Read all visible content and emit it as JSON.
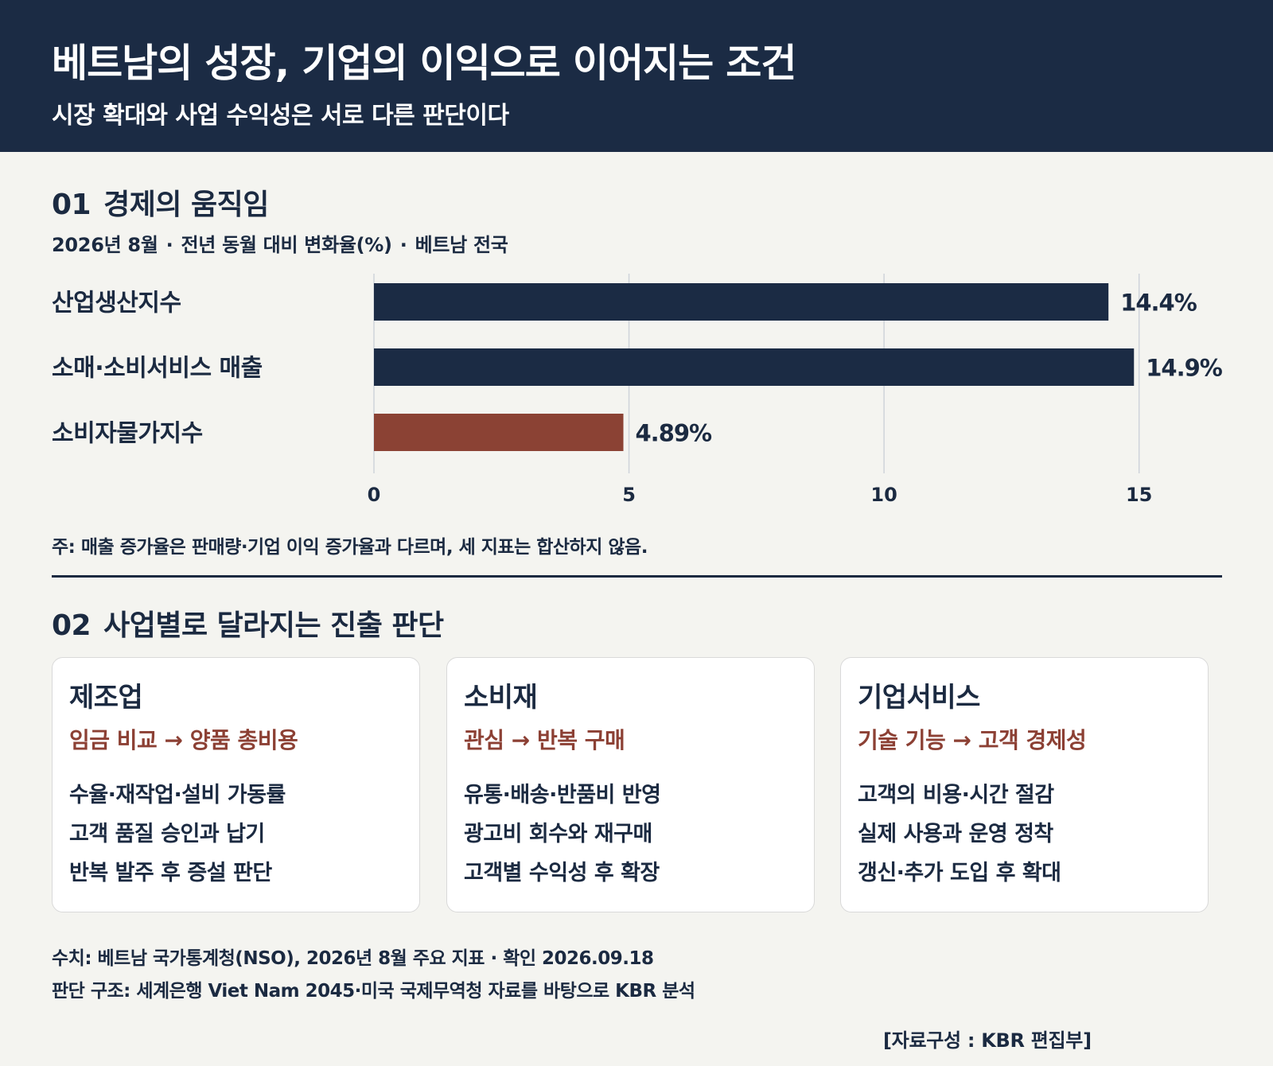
{
  "header": {
    "title": "베트남의 성장, 기업의 이익으로 이어지는 조건",
    "subtitle": "시장 확대와 사업 수익성은 서로 다른 판단이다"
  },
  "section1": {
    "number": "01",
    "title": "경제의 움직임",
    "subtitle_parts": [
      "2026년 8월",
      "전년 동월 대비 변화율(%)",
      "베트남 전국"
    ],
    "separator": "·",
    "note": "주: 매출 증가율은 판매량·기업 이익 증가율과 다르며, 세 지표는 합산하지 않음."
  },
  "chart_data": {
    "type": "bar",
    "orientation": "horizontal",
    "categories": [
      "산업생산지수",
      "소매·소비서비스 매출",
      "소비자물가지수"
    ],
    "values": [
      14.4,
      14.9,
      4.89
    ],
    "value_labels": [
      "14.4%",
      "14.9%",
      "4.89%"
    ],
    "bar_colors": [
      "#1b2b44",
      "#1b2b44",
      "#8b4234"
    ],
    "xlim": [
      0,
      18
    ],
    "xticks": [
      0,
      5,
      10,
      15
    ],
    "grid": true
  },
  "section2": {
    "number": "02",
    "title": "사업별로 달라지는 진출 판단",
    "cards": [
      {
        "title": "제조업",
        "flow": "임금 비교 → 양품 총비용",
        "items": [
          "수율·재작업·설비 가동률",
          "고객 품질 승인과 납기",
          "반복 발주 후 증설 판단"
        ]
      },
      {
        "title": "소비재",
        "flow": "관심 → 반복 구매",
        "items": [
          "유통·배송·반품비 반영",
          "광고비 회수와 재구매",
          "고객별 수익성 후 확장"
        ]
      },
      {
        "title": "기업서비스",
        "flow": "기술 기능 → 고객 경제성",
        "items": [
          "고객의 비용·시간 절감",
          "실제 사용과 운영 정착",
          "갱신·추가 도입 후 확대"
        ]
      }
    ]
  },
  "footer": {
    "source1": "수치: 베트남 국가통계청(NSO), 2026년 8월 주요 지표 · 확인 2026.09.18",
    "source2": "판단 구조: 세계은행 Viet Nam 2045·미국 국제무역청 자료를 바탕으로 KBR 분석",
    "credit": "[자료구성 : KBR 편집부]"
  }
}
